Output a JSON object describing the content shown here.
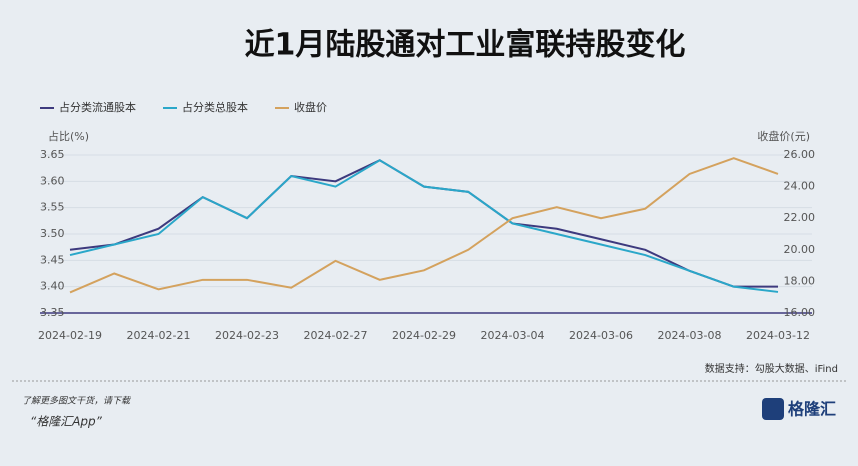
{
  "chart_data": {
    "type": "line",
    "title": "近1月陆股通对工业富联持股变化",
    "y_label": "占比(%)",
    "y2_label": "收盘价(元)",
    "categories": [
      "2024-02-19",
      null,
      "2024-02-21",
      null,
      "2024-02-23",
      null,
      "2024-02-27",
      null,
      "2024-02-29",
      null,
      "2024-03-04",
      null,
      "2024-03-06",
      null,
      "2024-03-08",
      null,
      "2024-03-12"
    ],
    "series": [
      {
        "name": "占分类流通股本",
        "color": "#3d3a7e",
        "values": [
          3.47,
          3.48,
          3.51,
          3.57,
          3.53,
          3.61,
          3.6,
          3.64,
          3.59,
          3.58,
          3.52,
          3.51,
          3.49,
          3.47,
          3.43,
          3.4,
          3.4
        ]
      },
      {
        "name": "占分类总股本",
        "color": "#2aa7c9",
        "values": [
          3.46,
          3.48,
          3.5,
          3.57,
          3.53,
          3.61,
          3.59,
          3.64,
          3.59,
          3.58,
          3.52,
          3.5,
          3.48,
          3.46,
          3.43,
          3.4,
          3.39
        ]
      },
      {
        "name": "收盘价",
        "color": "#d4a25e",
        "axis": "y2",
        "values": [
          17.3,
          18.5,
          17.5,
          18.1,
          18.1,
          17.6,
          19.3,
          18.1,
          18.7,
          20.0,
          22.0,
          22.7,
          22.0,
          22.6,
          24.8,
          25.8,
          24.8
        ]
      }
    ],
    "ylim": [
      3.35,
      3.65
    ],
    "yticks": [
      3.35,
      {
        "value": 3.4,
        "label": "3.40"
      },
      3.45,
      {
        "value": 3.5,
        "label": "3.50"
      },
      3.55,
      {
        "value": 3.6,
        "label": "3.60"
      },
      3.65
    ],
    "y2lim": [
      16,
      26
    ],
    "y2ticks": [
      {
        "value": 16,
        "label": "16.00"
      },
      {
        "value": 18,
        "label": "18.00"
      },
      {
        "value": 20,
        "label": "20.00"
      },
      {
        "value": 22,
        "label": "22.00"
      },
      {
        "value": 24,
        "label": "24.00"
      },
      {
        "value": 26,
        "label": "26.00"
      }
    ],
    "grid": true,
    "source": "数据支持：勾股大数据、iFind",
    "footer_note": "了解更多图文干货，请下载",
    "footer_app": "“格隆汇App”",
    "logo": "格隆汇"
  }
}
